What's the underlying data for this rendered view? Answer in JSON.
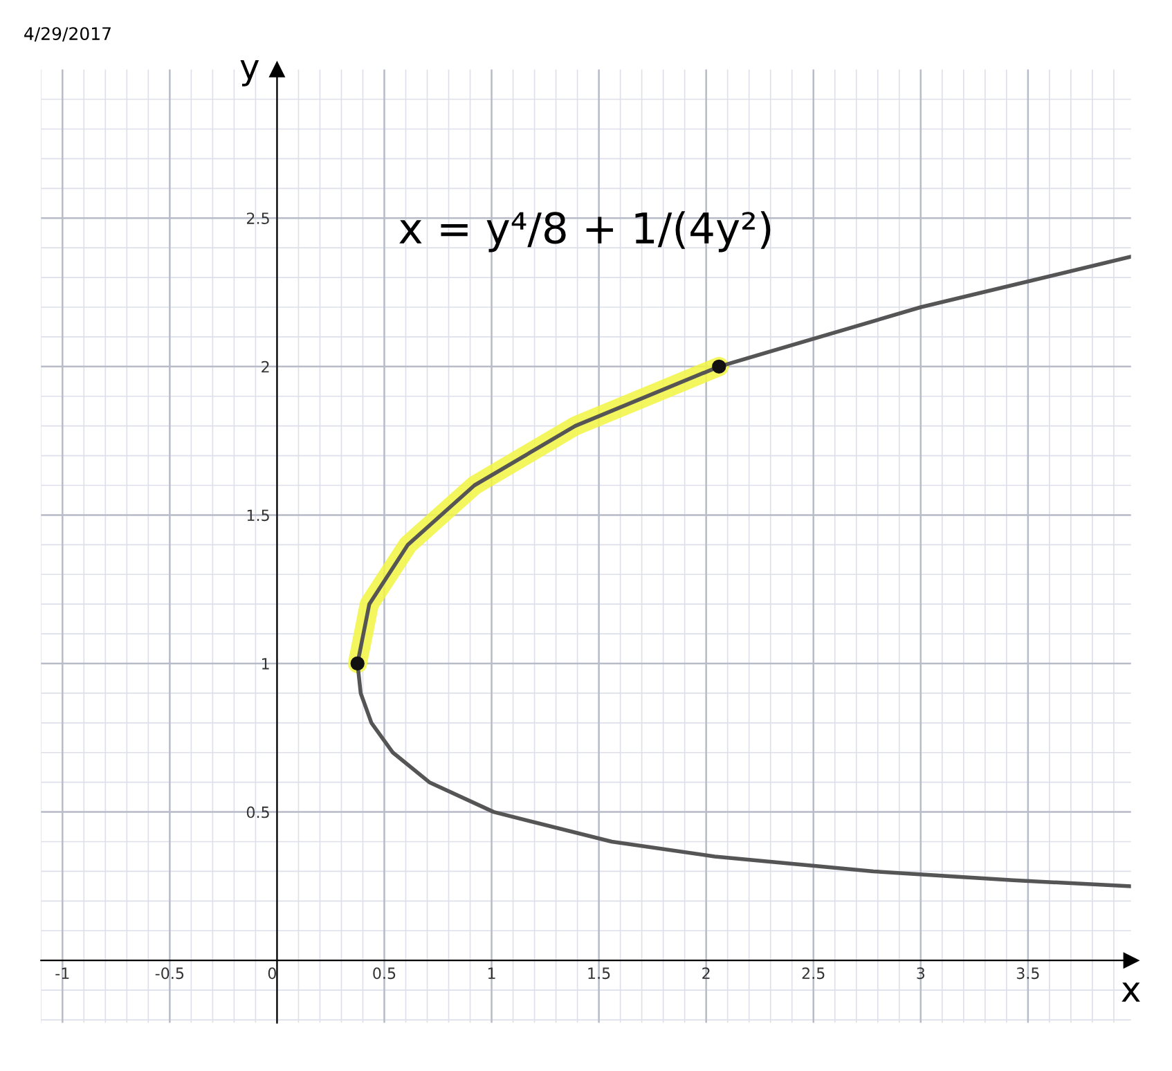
{
  "chart_data": {
    "type": "line",
    "xlabel": "x",
    "ylabel": "y",
    "xlim": [
      -1.1,
      3.98
    ],
    "ylim": [
      -0.21,
      3.0
    ],
    "xticks": [
      -1,
      -0.5,
      0,
      0.5,
      1,
      1.5,
      2,
      2.5,
      3,
      3.5
    ],
    "yticks": [
      0.5,
      1,
      1.5,
      2,
      2.5
    ],
    "grid": true,
    "annotations": [
      "4/29/2017",
      "x = y⁴/8 + 1/(4y²)"
    ],
    "series": [
      {
        "color": "#f2f542",
        "x": [
          0.375,
          0.43,
          0.61,
          0.92,
          1.39,
          2.06
        ],
        "values": [
          1,
          1.2,
          1.4,
          1.6,
          1.8,
          2.0
        ]
      },
      {
        "color": "#555555",
        "x": [
          3.98,
          3.43,
          2.78,
          2.04,
          1.56,
          1.01,
          0.71,
          0.54,
          0.44,
          0.39,
          0.375,
          0.43,
          0.61,
          0.92,
          1.39,
          2.06,
          3.0,
          3.98
        ],
        "values": [
          0.25,
          0.27,
          0.3,
          0.35,
          0.4,
          0.5,
          0.6,
          0.7,
          0.8,
          0.9,
          1,
          1.2,
          1.4,
          1.6,
          1.8,
          2.0,
          2.2,
          2.37
        ]
      },
      {
        "type": "scatter",
        "color": "#111111",
        "marker": "circle",
        "x": [
          0.375,
          2.06
        ],
        "values": [
          1,
          2
        ]
      }
    ]
  }
}
